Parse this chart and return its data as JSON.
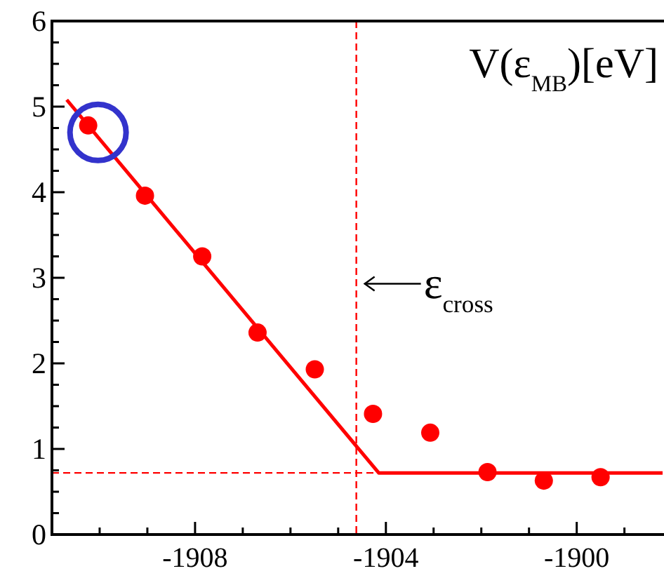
{
  "chart_data": {
    "type": "scatter",
    "annotations": [
      "V(ε$_{MB}$)[eV]",
      {
        "text": "ε$_{cross}$",
        "x": -1904.62,
        "y": 2.93
      }
    ],
    "xlim": [
      -1911,
      -1898.2
    ],
    "ylim": [
      0,
      6
    ],
    "xticks": [
      {
        "value": -1910,
        "label": null
      },
      {
        "value": -1909,
        "label": null
      },
      -1908,
      {
        "value": -1907,
        "label": null
      },
      {
        "value": -1906,
        "label": null
      },
      {
        "value": -1905,
        "label": null
      },
      -1904,
      {
        "value": -1903,
        "label": null
      },
      {
        "value": -1902,
        "label": null
      },
      {
        "value": -1901,
        "label": null
      },
      -1900,
      {
        "value": -1899,
        "label": null
      }
    ],
    "yticks": [
      0,
      {
        "value": 0.25,
        "label": null
      },
      {
        "value": 0.5,
        "label": null
      },
      {
        "value": 0.75,
        "label": null
      },
      1,
      {
        "value": 1.25,
        "label": null
      },
      {
        "value": 1.5,
        "label": null
      },
      {
        "value": 1.75,
        "label": null
      },
      2,
      {
        "value": 2.25,
        "label": null
      },
      {
        "value": 2.5,
        "label": null
      },
      {
        "value": 2.75,
        "label": null
      },
      3,
      {
        "value": 3.25,
        "label": null
      },
      {
        "value": 3.5,
        "label": null
      },
      {
        "value": 3.75,
        "label": null
      },
      4,
      {
        "value": 4.25,
        "label": null
      },
      {
        "value": 4.5,
        "label": null
      },
      {
        "value": 4.75,
        "label": null
      },
      5,
      {
        "value": 5.25,
        "label": null
      },
      {
        "value": 5.5,
        "label": null
      },
      {
        "value": 5.75,
        "label": null
      },
      6
    ],
    "series": [
      {
        "color": "#ff0000",
        "marker": "circle",
        "x": [
          -1910.24,
          -1909.05,
          -1907.85,
          -1906.69,
          -1905.49,
          -1904.27,
          -1903.07,
          -1901.87,
          -1900.69,
          -1899.5
        ],
        "values": [
          4.78,
          3.96,
          3.25,
          2.36,
          1.93,
          1.41,
          1.19,
          0.73,
          0.63,
          0.67
        ]
      },
      {
        "type": "line",
        "color": "#ff0000",
        "marker": "none",
        "line_style": "solid",
        "x": [
          -1910.69,
          -1904.15,
          -1898.2
        ],
        "values": [
          5.08,
          0.72,
          0.72
        ]
      }
    ],
    "ref_lines": [
      {
        "axis": "x",
        "value": -1904.62,
        "color": "#ff0000",
        "line_style": "dashed"
      },
      {
        "axis": "y",
        "value": 0.72,
        "color": "#ff0000",
        "line_style": "dashed"
      }
    ],
    "grid": false
  }
}
